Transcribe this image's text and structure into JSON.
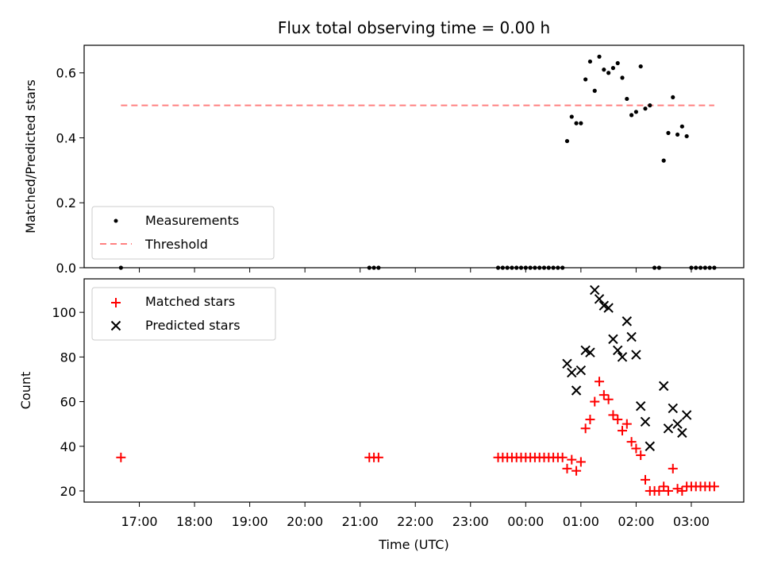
{
  "chart_data": [
    {
      "type": "scatter",
      "title": "Flux total observing time = 0.00 h",
      "ylabel": "Matched/Predicted stars",
      "ylim": [
        0,
        0.685
      ],
      "yticks": [
        0.0,
        0.2,
        0.4,
        0.6
      ],
      "ytick_labels": [
        "0.0",
        "0.2",
        "0.4",
        "0.6"
      ],
      "legend_position": "lower-left",
      "threshold": {
        "name": "Threshold",
        "value": 0.5,
        "x_start": "16:40",
        "x_end": "03:25",
        "color": "#ff6b6b"
      },
      "series": [
        {
          "name": "Measurements",
          "color": "#000000",
          "marker": "dot",
          "points": [
            [
              "16:40",
              0.0
            ],
            [
              "21:10",
              0.0
            ],
            [
              "21:15",
              0.0
            ],
            [
              "21:20",
              0.0
            ],
            [
              "23:30",
              0.0
            ],
            [
              "23:35",
              0.0
            ],
            [
              "23:40",
              0.0
            ],
            [
              "23:45",
              0.0
            ],
            [
              "23:50",
              0.0
            ],
            [
              "23:55",
              0.0
            ],
            [
              "00:00",
              0.0
            ],
            [
              "00:05",
              0.0
            ],
            [
              "00:10",
              0.0
            ],
            [
              "00:15",
              0.0
            ],
            [
              "00:20",
              0.0
            ],
            [
              "00:25",
              0.0
            ],
            [
              "00:30",
              0.0
            ],
            [
              "00:35",
              0.0
            ],
            [
              "00:40",
              0.0
            ],
            [
              "00:45",
              0.39
            ],
            [
              "00:50",
              0.465
            ],
            [
              "00:55",
              0.445
            ],
            [
              "01:00",
              0.445
            ],
            [
              "01:05",
              0.58
            ],
            [
              "01:10",
              0.635
            ],
            [
              "01:15",
              0.545
            ],
            [
              "01:20",
              0.65
            ],
            [
              "01:25",
              0.61
            ],
            [
              "01:30",
              0.6
            ],
            [
              "01:35",
              0.615
            ],
            [
              "01:40",
              0.63
            ],
            [
              "01:45",
              0.585
            ],
            [
              "01:50",
              0.52
            ],
            [
              "01:55",
              0.47
            ],
            [
              "02:00",
              0.48
            ],
            [
              "02:05",
              0.62
            ],
            [
              "02:10",
              0.49
            ],
            [
              "02:15",
              0.5
            ],
            [
              "02:20",
              0.0
            ],
            [
              "02:25",
              0.0
            ],
            [
              "02:30",
              0.33
            ],
            [
              "02:35",
              0.415
            ],
            [
              "02:40",
              0.525
            ],
            [
              "02:45",
              0.41
            ],
            [
              "02:50",
              0.435
            ],
            [
              "02:55",
              0.405
            ],
            [
              "03:00",
              0.0
            ],
            [
              "03:05",
              0.0
            ],
            [
              "03:10",
              0.0
            ],
            [
              "03:15",
              0.0
            ],
            [
              "03:20",
              0.0
            ],
            [
              "03:25",
              0.0
            ]
          ]
        }
      ]
    },
    {
      "type": "scatter",
      "ylabel": "Count",
      "xlabel": "Time (UTC)",
      "ylim": [
        15,
        115
      ],
      "yticks": [
        20,
        40,
        60,
        80,
        100
      ],
      "ytick_labels": [
        "20",
        "40",
        "60",
        "80",
        "100"
      ],
      "x_range": [
        "16:00",
        "03:57"
      ],
      "xtick_labels": [
        "17:00",
        "18:00",
        "19:00",
        "20:00",
        "21:00",
        "22:00",
        "23:00",
        "00:00",
        "01:00",
        "02:00",
        "03:00"
      ],
      "legend_position": "upper-left",
      "series": [
        {
          "name": "Matched stars",
          "color": "#ff0000",
          "marker": "plus",
          "points": [
            [
              "16:40",
              35
            ],
            [
              "21:10",
              35
            ],
            [
              "21:15",
              35
            ],
            [
              "21:20",
              35
            ],
            [
              "23:30",
              35
            ],
            [
              "23:35",
              35
            ],
            [
              "23:40",
              35
            ],
            [
              "23:45",
              35
            ],
            [
              "23:50",
              35
            ],
            [
              "23:55",
              35
            ],
            [
              "00:00",
              35
            ],
            [
              "00:05",
              35
            ],
            [
              "00:10",
              35
            ],
            [
              "00:15",
              35
            ],
            [
              "00:20",
              35
            ],
            [
              "00:25",
              35
            ],
            [
              "00:30",
              35
            ],
            [
              "00:35",
              35
            ],
            [
              "00:40",
              35
            ],
            [
              "00:45",
              30
            ],
            [
              "00:50",
              34
            ],
            [
              "00:55",
              29
            ],
            [
              "01:00",
              33
            ],
            [
              "01:05",
              48
            ],
            [
              "01:10",
              52
            ],
            [
              "01:15",
              60
            ],
            [
              "01:20",
              69
            ],
            [
              "01:25",
              63
            ],
            [
              "01:30",
              61
            ],
            [
              "01:35",
              54
            ],
            [
              "01:40",
              52
            ],
            [
              "01:45",
              47
            ],
            [
              "01:50",
              50
            ],
            [
              "01:55",
              42
            ],
            [
              "02:00",
              39
            ],
            [
              "02:05",
              36
            ],
            [
              "02:10",
              25
            ],
            [
              "02:15",
              20
            ],
            [
              "02:20",
              20
            ],
            [
              "02:25",
              20
            ],
            [
              "02:30",
              22
            ],
            [
              "02:35",
              20
            ],
            [
              "02:40",
              30
            ],
            [
              "02:45",
              21
            ],
            [
              "02:50",
              20
            ],
            [
              "02:55",
              22
            ],
            [
              "03:00",
              22
            ],
            [
              "03:05",
              22
            ],
            [
              "03:10",
              22
            ],
            [
              "03:15",
              22
            ],
            [
              "03:20",
              22
            ],
            [
              "03:25",
              22
            ]
          ]
        },
        {
          "name": "Predicted stars",
          "color": "#000000",
          "marker": "x",
          "points": [
            [
              "00:45",
              77
            ],
            [
              "00:50",
              73
            ],
            [
              "00:55",
              65
            ],
            [
              "01:00",
              74
            ],
            [
              "01:05",
              83
            ],
            [
              "01:10",
              82
            ],
            [
              "01:15",
              110
            ],
            [
              "01:20",
              106
            ],
            [
              "01:25",
              103
            ],
            [
              "01:30",
              102
            ],
            [
              "01:35",
              88
            ],
            [
              "01:40",
              83
            ],
            [
              "01:45",
              80
            ],
            [
              "01:50",
              96
            ],
            [
              "01:55",
              89
            ],
            [
              "02:00",
              81
            ],
            [
              "02:05",
              58
            ],
            [
              "02:10",
              51
            ],
            [
              "02:15",
              40
            ],
            [
              "02:30",
              67
            ],
            [
              "02:35",
              48
            ],
            [
              "02:40",
              57
            ],
            [
              "02:45",
              50
            ],
            [
              "02:50",
              46
            ],
            [
              "02:55",
              54
            ]
          ]
        }
      ]
    }
  ]
}
